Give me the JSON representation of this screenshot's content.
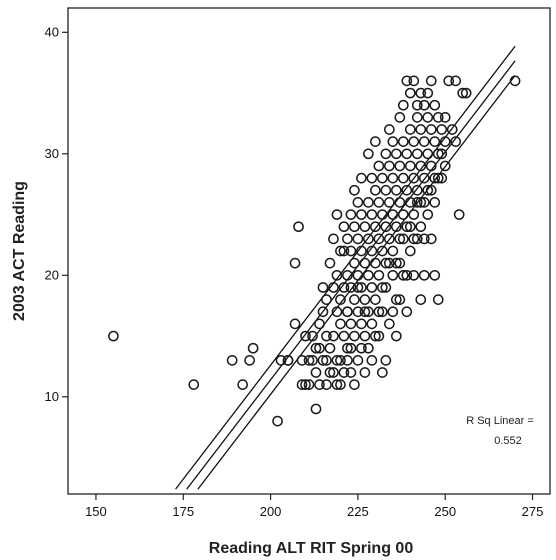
{
  "chart_data": {
    "type": "scatter",
    "xlabel": "Reading ALT RIT Spring 00",
    "ylabel": "2003 ACT Reading",
    "xlim": [
      142,
      280
    ],
    "ylim": [
      2,
      42
    ],
    "xticks": [
      150,
      175,
      200,
      225,
      250,
      275
    ],
    "yticks": [
      10,
      20,
      30,
      40
    ],
    "grid": false,
    "annotation": {
      "line1": "R Sq Linear =",
      "line2": "0.552"
    },
    "fit": {
      "slope": 0.375,
      "intercept": -63.6,
      "x_range": [
        176,
        270
      ],
      "band_offset": 1.6
    },
    "points": [
      [
        155,
        15
      ],
      [
        178,
        11
      ],
      [
        189,
        13
      ],
      [
        192,
        11
      ],
      [
        194,
        13
      ],
      [
        195,
        14
      ],
      [
        202,
        8
      ],
      [
        203,
        13
      ],
      [
        205,
        13
      ],
      [
        207,
        21
      ],
      [
        207,
        16
      ],
      [
        208,
        24
      ],
      [
        209,
        13
      ],
      [
        209,
        11
      ],
      [
        210,
        11
      ],
      [
        210,
        15
      ],
      [
        211,
        13
      ],
      [
        212,
        13
      ],
      [
        213,
        9
      ],
      [
        213,
        14
      ],
      [
        213,
        12
      ],
      [
        214,
        11
      ],
      [
        214,
        14
      ],
      [
        214,
        16
      ],
      [
        215,
        13
      ],
      [
        215,
        17
      ],
      [
        215,
        19
      ],
      [
        216,
        11
      ],
      [
        216,
        18
      ],
      [
        216,
        13
      ],
      [
        217,
        14
      ],
      [
        217,
        21
      ],
      [
        217,
        12
      ],
      [
        218,
        15
      ],
      [
        218,
        19
      ],
      [
        218,
        23
      ],
      [
        219,
        17
      ],
      [
        219,
        13
      ],
      [
        219,
        11
      ],
      [
        219,
        25
      ],
      [
        220,
        13
      ],
      [
        220,
        16
      ],
      [
        220,
        22
      ],
      [
        220,
        18
      ],
      [
        220,
        11
      ],
      [
        221,
        19
      ],
      [
        221,
        12
      ],
      [
        221,
        24
      ],
      [
        221,
        15
      ],
      [
        222,
        14
      ],
      [
        222,
        17
      ],
      [
        222,
        20
      ],
      [
        222,
        23
      ],
      [
        222,
        13
      ],
      [
        223,
        16
      ],
      [
        223,
        19
      ],
      [
        223,
        22
      ],
      [
        223,
        25
      ],
      [
        223,
        12
      ],
      [
        224,
        18
      ],
      [
        224,
        21
      ],
      [
        224,
        15
      ],
      [
        224,
        27
      ],
      [
        224,
        11
      ],
      [
        225,
        13
      ],
      [
        225,
        17
      ],
      [
        225,
        20
      ],
      [
        225,
        23
      ],
      [
        225,
        26
      ],
      [
        226,
        16
      ],
      [
        226,
        19
      ],
      [
        226,
        22
      ],
      [
        226,
        14
      ],
      [
        226,
        28
      ],
      [
        227,
        18
      ],
      [
        227,
        21
      ],
      [
        227,
        24
      ],
      [
        227,
        12
      ],
      [
        227,
        15
      ],
      [
        228,
        17
      ],
      [
        228,
        20
      ],
      [
        228,
        23
      ],
      [
        228,
        26
      ],
      [
        228,
        30
      ],
      [
        229,
        19
      ],
      [
        229,
        22
      ],
      [
        229,
        25
      ],
      [
        229,
        16
      ],
      [
        229,
        13
      ],
      [
        230,
        21
      ],
      [
        230,
        24
      ],
      [
        230,
        27
      ],
      [
        230,
        18
      ],
      [
        230,
        31
      ],
      [
        231,
        20
      ],
      [
        231,
        23
      ],
      [
        231,
        26
      ],
      [
        231,
        29
      ],
      [
        231,
        15
      ],
      [
        232,
        22
      ],
      [
        232,
        25
      ],
      [
        232,
        28
      ],
      [
        232,
        17
      ],
      [
        232,
        12
      ],
      [
        233,
        21
      ],
      [
        233,
        24
      ],
      [
        233,
        27
      ],
      [
        233,
        30
      ],
      [
        233,
        19
      ],
      [
        234,
        23
      ],
      [
        234,
        26
      ],
      [
        234,
        29
      ],
      [
        234,
        16
      ],
      [
        234,
        32
      ],
      [
        235,
        25
      ],
      [
        235,
        28
      ],
      [
        235,
        22
      ],
      [
        235,
        20
      ],
      [
        235,
        31
      ],
      [
        236,
        24
      ],
      [
        236,
        27
      ],
      [
        236,
        30
      ],
      [
        236,
        18
      ],
      [
        236,
        15
      ],
      [
        237,
        26
      ],
      [
        237,
        29
      ],
      [
        237,
        23
      ],
      [
        237,
        33
      ],
      [
        237,
        21
      ],
      [
        238,
        28
      ],
      [
        238,
        25
      ],
      [
        238,
        31
      ],
      [
        238,
        20
      ],
      [
        238,
        34
      ],
      [
        239,
        27
      ],
      [
        239,
        30
      ],
      [
        239,
        24
      ],
      [
        239,
        17
      ],
      [
        239,
        36
      ],
      [
        240,
        29
      ],
      [
        240,
        26
      ],
      [
        240,
        32
      ],
      [
        240,
        22
      ],
      [
        240,
        35
      ],
      [
        241,
        28
      ],
      [
        241,
        31
      ],
      [
        241,
        25
      ],
      [
        241,
        20
      ],
      [
        241,
        36
      ],
      [
        242,
        30
      ],
      [
        242,
        27
      ],
      [
        242,
        33
      ],
      [
        242,
        23
      ],
      [
        242,
        34
      ],
      [
        243,
        29
      ],
      [
        243,
        32
      ],
      [
        243,
        26
      ],
      [
        243,
        35
      ],
      [
        243,
        18
      ],
      [
        244,
        31
      ],
      [
        244,
        28
      ],
      [
        244,
        34
      ],
      [
        244,
        23
      ],
      [
        244,
        20
      ],
      [
        245,
        30
      ],
      [
        245,
        33
      ],
      [
        245,
        27
      ],
      [
        245,
        35
      ],
      [
        246,
        32
      ],
      [
        246,
        29
      ],
      [
        246,
        23
      ],
      [
        246,
        36
      ],
      [
        247,
        31
      ],
      [
        247,
        28
      ],
      [
        247,
        34
      ],
      [
        247,
        20
      ],
      [
        248,
        30
      ],
      [
        248,
        33
      ],
      [
        248,
        18
      ],
      [
        249,
        32
      ],
      [
        249,
        28
      ],
      [
        250,
        31
      ],
      [
        250,
        29
      ],
      [
        251,
        36
      ],
      [
        252,
        32
      ],
      [
        253,
        31
      ],
      [
        253,
        36
      ],
      [
        254,
        25
      ],
      [
        255,
        35
      ],
      [
        256,
        35
      ],
      [
        270,
        36
      ],
      [
        205,
        13
      ],
      [
        211,
        11
      ],
      [
        212,
        15
      ],
      [
        216,
        15
      ],
      [
        218,
        12
      ],
      [
        219,
        20
      ],
      [
        221,
        22
      ],
      [
        222,
        17
      ],
      [
        223,
        14
      ],
      [
        224,
        24
      ],
      [
        225,
        19
      ],
      [
        226,
        25
      ],
      [
        227,
        17
      ],
      [
        228,
        14
      ],
      [
        229,
        28
      ],
      [
        230,
        15
      ],
      [
        231,
        17
      ],
      [
        232,
        19
      ],
      [
        233,
        13
      ],
      [
        234,
        21
      ],
      [
        235,
        17
      ],
      [
        236,
        21
      ],
      [
        237,
        18
      ],
      [
        238,
        23
      ],
      [
        239,
        20
      ],
      [
        240,
        24
      ],
      [
        241,
        23
      ],
      [
        242,
        26
      ],
      [
        243,
        24
      ],
      [
        244,
        26
      ],
      [
        245,
        25
      ],
      [
        246,
        27
      ],
      [
        247,
        26
      ],
      [
        248,
        28
      ],
      [
        249,
        30
      ],
      [
        250,
        33
      ]
    ]
  }
}
